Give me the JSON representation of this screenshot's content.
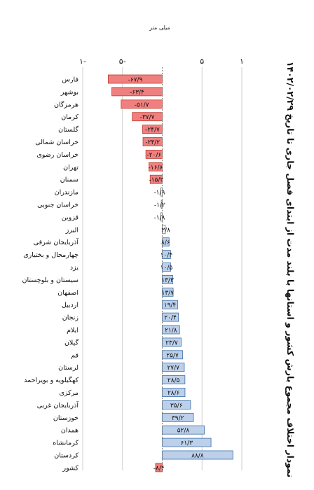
{
  "chart_data": {
    "type": "bar",
    "orientation": "horizontal",
    "title": "نمودار اختلاف مجموع بارش کشور و استانها با بلند مدت از ابتدای فصل جاری تا تاریخ ۱۴۰۲/۰۲/۲۹",
    "unit_label": "میلی متر",
    "x_ticks": [
      -100,
      -50,
      0,
      50,
      100
    ],
    "x_tick_labels": [
      "۱-",
      "۵-",
      "",
      "۵",
      "۱"
    ],
    "xlim": [
      -100,
      100
    ],
    "grid": true,
    "colors": {
      "negative_fill": "#f08080",
      "negative_stroke": "#c0392b",
      "positive_fill": "#bcd0ea",
      "positive_stroke": "#3b6ea8",
      "neutral_fill": "#ffffff",
      "neutral_stroke": "#666666"
    },
    "categories": [
      "فارس",
      "بوشهر",
      "هرمزگان",
      "کرمان",
      "گلستان",
      "خراسان شمالی",
      "خراسان رضوی",
      "تهران",
      "سمنان",
      "مازندران",
      "خراسان جنوبی",
      "قزوین",
      "البرز",
      "آذربایجان شرقی",
      "چهارمحال و بختیاری",
      "یزد",
      "سیستان و بلوچستان",
      "اصفهان",
      "اردبیل",
      "زنجان",
      "ایلام",
      "گیلان",
      "قم",
      "لرستان",
      "کهگیلویه و بویراحمد",
      "مرکزی",
      "آذربایجان غربی",
      "خوزستان",
      "همدان",
      "کرمانشاه",
      "کردستان",
      "کشور"
    ],
    "values": [
      -67.9,
      -63.4,
      -51.7,
      -37.7,
      -24.7,
      -24.2,
      -20.6,
      -16.8,
      -15.2,
      -1.9,
      -1.2,
      -1.8,
      3.8,
      8.6,
      10.4,
      10.5,
      13.3,
      13.7,
      19.4,
      20.4,
      21.8,
      23.7,
      25.7,
      27.7,
      28.5,
      28.6,
      35.6,
      39.2,
      52.8,
      61.3,
      88.8,
      -8.4
    ],
    "value_labels": [
      "-۶۷/۹",
      "-۶۳/۴",
      "-۵۱/۷",
      "-۳۷/۷",
      "-۲۴/۷",
      "-۲۴/۲",
      "-۲۰/۶",
      "-۱۶/۸",
      "-۱۵/۲",
      "-۱/۹",
      "-۱/۲",
      "-۱/۸",
      "۳/۸",
      "۸/۶",
      "۱۰/۴",
      "۱۰/۵",
      "۱۳/۳",
      "۱۳/۷",
      "۱۹/۴",
      "۲۰/۴",
      "۲۱/۸",
      "۲۳/۷",
      "۲۵/۷",
      "۲۷/۷",
      "۲۸/۵",
      "۲۸/۶",
      "۳۵/۶",
      "۳۹/۲",
      "۵۲/۸",
      "۶۱/۳",
      "۸۸/۸",
      "-۸/۴"
    ]
  }
}
